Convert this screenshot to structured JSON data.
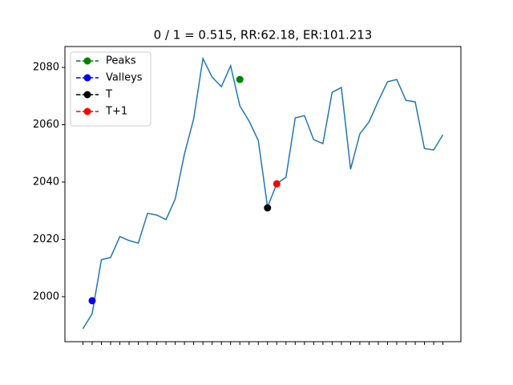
{
  "chart_data": {
    "type": "line",
    "title": "0 / 1 = 0.515, RR:62.18, ER:101.213",
    "categories": [
      null,
      null,
      null,
      null,
      null,
      null,
      null,
      null,
      null,
      null,
      null,
      null,
      null,
      null,
      null,
      null,
      null,
      null,
      null,
      null,
      null,
      null,
      null,
      null,
      null,
      null,
      null,
      null,
      null,
      null,
      null,
      null,
      null,
      null,
      null,
      null,
      null,
      null,
      null,
      null
    ],
    "series": [
      {
        "name": null,
        "color": "#1f77b4",
        "style": "line",
        "values": [
          1988.8,
          1994.1,
          2012.9,
          2013.7,
          2021.0,
          2019.6,
          2018.7,
          2029.1,
          2028.5,
          2026.9,
          2034.1,
          2049.8,
          2062.1,
          2083.1,
          2076.6,
          2073.3,
          2080.6,
          2066.6,
          2061.3,
          2054.5,
          2031.3,
          2039.4,
          2041.7,
          2062.4,
          2063.2,
          2054.8,
          2053.4,
          2071.3,
          2073.0,
          2044.5,
          2056.8,
          2061.0,
          2068.3,
          2075.0,
          2075.8,
          2068.5,
          2068.0,
          2051.7,
          2051.2,
          2056.5
        ]
      },
      {
        "name": "Peaks",
        "color": "green",
        "style": "marker",
        "values": [
          null,
          null,
          null,
          null,
          null,
          null,
          null,
          null,
          null,
          null,
          null,
          null,
          null,
          null,
          null,
          null,
          null,
          2075.8,
          null,
          null,
          null,
          null,
          null,
          null,
          null,
          null,
          null,
          null,
          null,
          null,
          null,
          null,
          null,
          null,
          null,
          null,
          null,
          null,
          null,
          null
        ]
      },
      {
        "name": "Valleys",
        "color": "blue",
        "style": "marker",
        "values": [
          null,
          1998.6,
          null,
          null,
          null,
          null,
          null,
          null,
          null,
          null,
          null,
          null,
          null,
          null,
          null,
          null,
          null,
          null,
          null,
          null,
          null,
          null,
          null,
          null,
          null,
          null,
          null,
          null,
          null,
          null,
          null,
          null,
          null,
          null,
          null,
          null,
          null,
          null,
          null,
          null
        ]
      },
      {
        "name": "T",
        "color": "black",
        "style": "marker",
        "values": [
          null,
          null,
          null,
          null,
          null,
          null,
          null,
          null,
          null,
          null,
          null,
          null,
          null,
          null,
          null,
          null,
          null,
          null,
          null,
          null,
          2031.0,
          null,
          null,
          null,
          null,
          null,
          null,
          null,
          null,
          null,
          null,
          null,
          null,
          null,
          null,
          null,
          null,
          null,
          null,
          null
        ]
      },
      {
        "name": "T+1",
        "color": "red",
        "style": "marker",
        "values": [
          null,
          null,
          null,
          null,
          null,
          null,
          null,
          null,
          null,
          null,
          null,
          null,
          null,
          null,
          null,
          null,
          null,
          null,
          null,
          null,
          null,
          2039.4,
          null,
          null,
          null,
          null,
          null,
          null,
          null,
          null,
          null,
          null,
          null,
          null,
          null,
          null,
          null,
          null,
          null,
          null
        ]
      }
    ],
    "ylim": [
      1984.3,
      2087.3
    ],
    "yticks": [
      2000,
      2020,
      2040,
      2060,
      2080
    ],
    "legend": "upper left",
    "grid": false
  }
}
